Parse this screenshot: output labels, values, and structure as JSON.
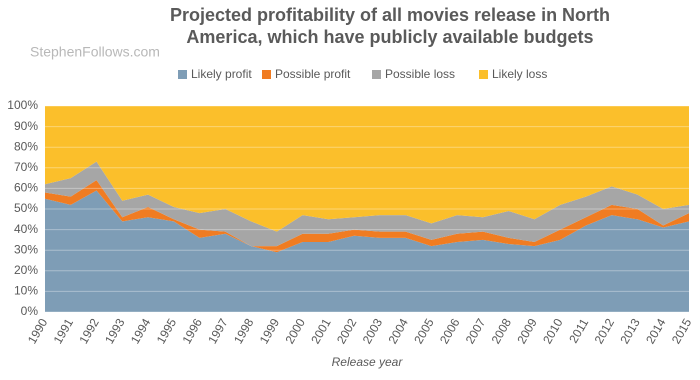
{
  "chart_data": {
    "type": "stacked_area",
    "title": "Projected profitability of all movies release in North America, which have publicly available budgets",
    "watermark": "StephenFollows.com",
    "x_label": "Release year",
    "categories": [
      "1990",
      "1991",
      "1992",
      "1993",
      "1994",
      "1995",
      "1996",
      "1997",
      "1998",
      "1999",
      "2000",
      "2001",
      "2002",
      "2003",
      "2004",
      "2005",
      "2006",
      "2007",
      "2008",
      "2009",
      "2010",
      "2011",
      "2012",
      "2013",
      "2014",
      "2015"
    ],
    "series": [
      {
        "name": "Likely profit",
        "color": "#7e9db6",
        "values": [
          55,
          52,
          59,
          44,
          46,
          44,
          36,
          38,
          32,
          29,
          34,
          34,
          37,
          36,
          36,
          32,
          34,
          35,
          33,
          32,
          35,
          42,
          47,
          45,
          41,
          44
        ]
      },
      {
        "name": "Possible profit",
        "color": "#f07c22",
        "values": [
          3,
          4,
          5,
          2,
          5,
          1,
          4,
          1,
          0,
          3,
          4,
          4,
          3,
          3,
          3,
          3,
          4,
          4,
          3,
          2,
          5,
          4,
          5,
          5,
          1,
          4
        ]
      },
      {
        "name": "Possible loss",
        "color": "#a6a6a6",
        "values": [
          4,
          9,
          9,
          8,
          6,
          6,
          8,
          11,
          12,
          7,
          9,
          7,
          6,
          8,
          8,
          8,
          9,
          7,
          13,
          11,
          12,
          10,
          9,
          7,
          8,
          4
        ]
      },
      {
        "name": "Likely loss",
        "color": "#fbbf2b",
        "values": [
          38,
          35,
          27,
          46,
          43,
          49,
          52,
          50,
          56,
          61,
          53,
          55,
          54,
          53,
          53,
          57,
          53,
          54,
          51,
          55,
          48,
          44,
          39,
          43,
          50,
          48
        ]
      }
    ],
    "ylim": [
      0,
      100
    ],
    "yticks": [
      {
        "value": 0,
        "label": "0%"
      },
      {
        "value": 10,
        "label": "10%"
      },
      {
        "value": 20,
        "label": "20%"
      },
      {
        "value": 30,
        "label": "30%"
      },
      {
        "value": 40,
        "label": "40%"
      },
      {
        "value": 50,
        "label": "50%"
      },
      {
        "value": 60,
        "label": "60%"
      },
      {
        "value": 70,
        "label": "70%"
      },
      {
        "value": 80,
        "label": "80%"
      },
      {
        "value": 90,
        "label": "90%"
      },
      {
        "value": 100,
        "label": "100%"
      }
    ],
    "grid": true,
    "legend": "top"
  }
}
